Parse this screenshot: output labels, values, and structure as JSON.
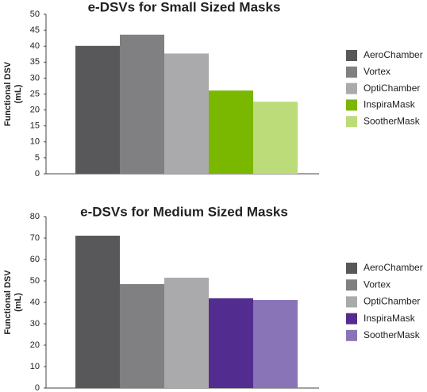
{
  "chart_data": [
    {
      "type": "bar",
      "title": "e-DSVs for Small Sized Masks",
      "ylabel": [
        "Functional DSV",
        "(mL)"
      ],
      "categories": [
        "AeroChamber",
        "Vortex",
        "OptiChamber",
        "InspiraMask",
        "SootherMask"
      ],
      "values": [
        40.1,
        43.6,
        37.7,
        26.1,
        22.6
      ],
      "colors": [
        "#58585a",
        "#808082",
        "#aaaaac",
        "#7ab800",
        "#bcdc7a"
      ],
      "ylim": [
        0,
        50
      ],
      "yticks": [
        0,
        5,
        10,
        15,
        20,
        25,
        30,
        35,
        40,
        45,
        50
      ],
      "grid": false
    },
    {
      "type": "bar",
      "title": "e-DSVs for Medium Sized Masks",
      "ylabel": [
        "Functional DSV",
        "(mL)"
      ],
      "categories": [
        "AeroChamber",
        "Vortex",
        "OptiChamber",
        "InspiraMask",
        "SootherMask"
      ],
      "values": [
        71.1,
        48.5,
        51.5,
        41.9,
        41.1
      ],
      "colors": [
        "#58585a",
        "#808082",
        "#aaaaac",
        "#522d8f",
        "#8a74b8"
      ],
      "ylim": [
        0,
        80
      ],
      "yticks": [
        0,
        10,
        20,
        30,
        40,
        50,
        60,
        70,
        80
      ],
      "grid": false
    }
  ]
}
